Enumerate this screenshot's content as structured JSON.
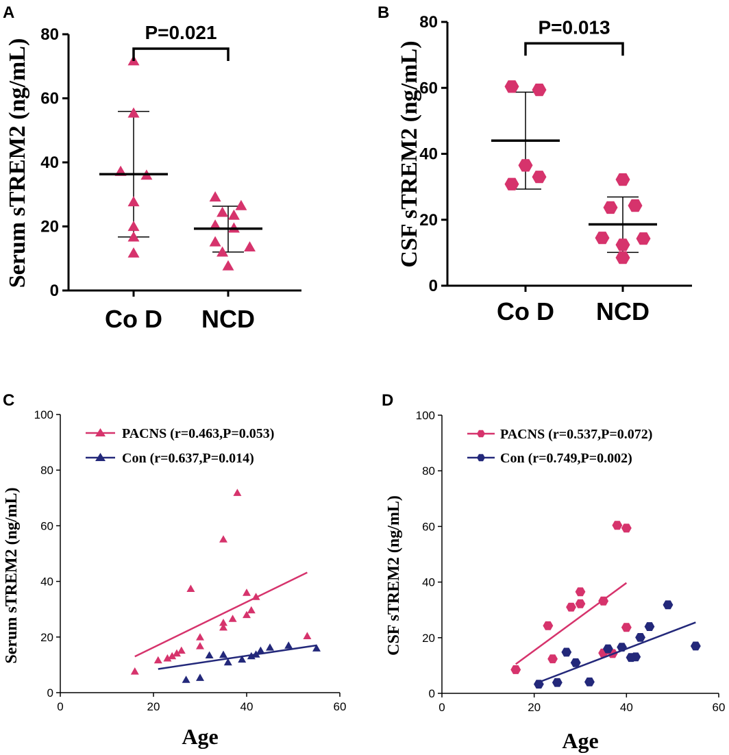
{
  "colors": {
    "pacns": "#D6336C",
    "con": "#23287A",
    "axis": "#000000"
  },
  "chart_data": [
    {
      "id": "A",
      "type": "scatter",
      "panel_label": "A",
      "ylabel": "Serum sTREM2 (ng/mL)",
      "categories": [
        "Co D",
        "NCD"
      ],
      "ylim": [
        0,
        80
      ],
      "yticks": [
        0,
        20,
        40,
        60,
        80
      ],
      "marker": "triangle",
      "points": [
        [
          {
            "dx": 0.0,
            "y": 71.5
          },
          {
            "dx": 0.0,
            "y": 55.2
          },
          {
            "dx": -0.45,
            "y": 37.0
          },
          {
            "dx": 0.45,
            "y": 35.8
          },
          {
            "dx": 0.0,
            "y": 27.5
          },
          {
            "dx": 0.0,
            "y": 19.8
          },
          {
            "dx": 0.0,
            "y": 16.5
          },
          {
            "dx": 0.0,
            "y": 11.5
          }
        ],
        [
          {
            "dx": -0.45,
            "y": 29.0
          },
          {
            "dx": 0.45,
            "y": 26.3
          },
          {
            "dx": -0.2,
            "y": 24.2
          },
          {
            "dx": 0.2,
            "y": 23.3
          },
          {
            "dx": -0.45,
            "y": 20.2
          },
          {
            "dx": 0.2,
            "y": 19.3
          },
          {
            "dx": -0.45,
            "y": 15.0
          },
          {
            "dx": 0.75,
            "y": 13.4
          },
          {
            "dx": -0.2,
            "y": 11.8
          },
          {
            "dx": 0.0,
            "y": 7.5
          }
        ]
      ],
      "median": [
        36.3,
        19.3
      ],
      "lower": [
        16.7,
        12.0
      ],
      "upper": [
        55.9,
        26.3
      ],
      "comparison": {
        "label": "P=0.021",
        "y": 75.5
      }
    },
    {
      "id": "B",
      "type": "scatter",
      "panel_label": "B",
      "ylabel": "CSF sTREM2 (ng/mL)",
      "categories": [
        "Co D",
        "NCD"
      ],
      "ylim": [
        0,
        80
      ],
      "yticks": [
        0,
        20,
        40,
        60,
        80
      ],
      "marker": "hexagon",
      "points": [
        [
          {
            "dx": -0.5,
            "y": 60.4
          },
          {
            "dx": 0.5,
            "y": 59.4
          },
          {
            "dx": 0.0,
            "y": 36.5
          },
          {
            "dx": 0.5,
            "y": 33.0
          },
          {
            "dx": -0.5,
            "y": 30.8
          }
        ],
        [
          {
            "dx": 0.0,
            "y": 32.2
          },
          {
            "dx": 0.45,
            "y": 24.3
          },
          {
            "dx": -0.45,
            "y": 23.7
          },
          {
            "dx": -0.75,
            "y": 14.5
          },
          {
            "dx": 0.75,
            "y": 14.3
          },
          {
            "dx": 0.0,
            "y": 12.4
          },
          {
            "dx": 0.0,
            "y": 8.5
          }
        ]
      ],
      "median": [
        44.0,
        18.6
      ],
      "lower": [
        29.3,
        10.1
      ],
      "upper": [
        58.7,
        26.9
      ],
      "comparison": {
        "label": "P=0.013",
        "y": 73.5
      }
    },
    {
      "id": "C",
      "type": "scatter",
      "panel_label": "C",
      "xlabel": "Age",
      "ylabel": "Serum sTREM2 (ng/mL)",
      "xlim": [
        0,
        60
      ],
      "ylim": [
        0,
        100
      ],
      "xticks": [
        0,
        20,
        40,
        60
      ],
      "yticks": [
        0,
        20,
        40,
        60,
        80,
        100
      ],
      "marker": "triangle",
      "series": [
        {
          "name": "PACNS (r=0.463,P=0.053)",
          "color_key": "pacns",
          "points": [
            [
              16,
              7.5
            ],
            [
              21,
              11.5
            ],
            [
              23,
              12.2
            ],
            [
              24,
              13.0
            ],
            [
              25,
              14.0
            ],
            [
              26,
              15.0
            ],
            [
              28,
              37.2
            ],
            [
              30,
              19.8
            ],
            [
              30,
              16.6
            ],
            [
              35,
              55.0
            ],
            [
              35,
              25.0
            ],
            [
              35,
              23.3
            ],
            [
              37,
              26.4
            ],
            [
              38,
              71.7
            ],
            [
              40,
              35.8
            ],
            [
              40,
              27.8
            ],
            [
              41,
              29.5
            ],
            [
              42,
              34.3
            ],
            [
              53,
              20.2
            ]
          ],
          "fit": [
            [
              16,
              13.0
            ],
            [
              53,
              43.2
            ]
          ]
        },
        {
          "name": "Con (r=0.637,P=0.014)",
          "color_key": "con",
          "points": [
            [
              27,
              4.5
            ],
            [
              30,
              5.2
            ],
            [
              32,
              13.3
            ],
            [
              35,
              13.5
            ],
            [
              36,
              10.8
            ],
            [
              39,
              11.8
            ],
            [
              41,
              13.0
            ],
            [
              42,
              13.6
            ],
            [
              43,
              15.0
            ],
            [
              45,
              16.1
            ],
            [
              49,
              16.8
            ],
            [
              55,
              15.8
            ]
          ],
          "fit": [
            [
              21,
              8.5
            ],
            [
              55,
              17.0
            ]
          ]
        }
      ]
    },
    {
      "id": "D",
      "type": "scatter",
      "panel_label": "D",
      "xlabel": "Age",
      "ylabel": "CSF sTREM2 (ng/mL)",
      "xlim": [
        0,
        60
      ],
      "ylim": [
        0,
        100
      ],
      "xticks": [
        0,
        20,
        40,
        60
      ],
      "yticks": [
        0,
        20,
        40,
        60,
        80,
        100
      ],
      "marker": "hexagon",
      "series": [
        {
          "name": "PACNS (r=0.537,P=0.072)",
          "color_key": "pacns",
          "points": [
            [
              16,
              8.5
            ],
            [
              23,
              24.3
            ],
            [
              24,
              12.4
            ],
            [
              28,
              31.0
            ],
            [
              30,
              36.5
            ],
            [
              30,
              32.2
            ],
            [
              35,
              33.2
            ],
            [
              35,
              14.5
            ],
            [
              37,
              14.3
            ],
            [
              38,
              60.4
            ],
            [
              40,
              59.4
            ],
            [
              40,
              23.7
            ]
          ],
          "fit": [
            [
              16,
              10.5
            ],
            [
              40,
              39.7
            ]
          ]
        },
        {
          "name": "Con (r=0.749,P=0.002)",
          "color_key": "con",
          "points": [
            [
              21,
              3.3
            ],
            [
              25,
              3.9
            ],
            [
              27,
              14.8
            ],
            [
              29,
              11.0
            ],
            [
              32,
              4.1
            ],
            [
              36,
              16.0
            ],
            [
              39,
              16.6
            ],
            [
              41,
              12.9
            ],
            [
              42,
              13.1
            ],
            [
              43,
              20.1
            ],
            [
              45,
              24.0
            ],
            [
              49,
              31.8
            ],
            [
              55,
              17.0
            ]
          ],
          "fit": [
            [
              21,
              4.0
            ],
            [
              55,
              25.5
            ]
          ]
        }
      ]
    }
  ]
}
